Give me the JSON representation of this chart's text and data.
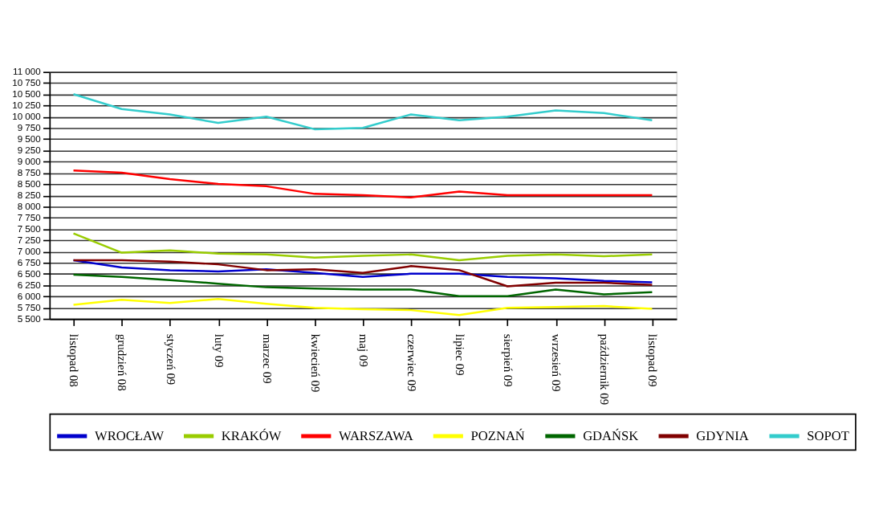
{
  "chart_data": {
    "type": "line",
    "categories": [
      "listopad 08",
      "grudzień 08",
      "styczeń 09",
      "luty 09",
      "marzec 09",
      "kwiecień 09",
      "maj 09",
      "czerwiec 09",
      "lipiec 09",
      "sierpień 09",
      "wrzesień 09",
      "październik 09",
      "listopad 09"
    ],
    "ylim": [
      5500,
      11000
    ],
    "yticks": [
      {
        "value": 5500,
        "label": "5 500"
      },
      {
        "value": 5750,
        "label": "5 750"
      },
      {
        "value": 6000,
        "label": "6 000"
      },
      {
        "value": 6250,
        "label": "6 250"
      },
      {
        "value": 6500,
        "label": "6 500"
      },
      {
        "value": 6750,
        "label": "6 750"
      },
      {
        "value": 7000,
        "label": "7 000"
      },
      {
        "value": 7250,
        "label": "7 250"
      },
      {
        "value": 7500,
        "label": "7 500"
      },
      {
        "value": 7750,
        "label": "7 750"
      },
      {
        "value": 8000,
        "label": "8 000"
      },
      {
        "value": 8250,
        "label": "8 250"
      },
      {
        "value": 8500,
        "label": "8 500"
      },
      {
        "value": 8750,
        "label": "8 750"
      },
      {
        "value": 9000,
        "label": "9 000"
      },
      {
        "value": 9250,
        "label": "9 250"
      },
      {
        "value": 9500,
        "label": "9 500"
      },
      {
        "value": 9750,
        "label": "9 750"
      },
      {
        "value": 10000,
        "label": "10 000"
      },
      {
        "value": 10250,
        "label": "10 250"
      },
      {
        "value": 10500,
        "label": "10 500"
      },
      {
        "value": 10750,
        "label": "10 750"
      },
      {
        "value": 11000,
        "label": "11 000"
      }
    ],
    "grid": "y",
    "legend": "bottom",
    "marker": "none",
    "line_style": "solid",
    "series": [
      {
        "name": "WROCŁAW",
        "color": "#0000cc",
        "values": [
          6800,
          6640,
          6580,
          6550,
          6600,
          6520,
          6430,
          6500,
          6500,
          6430,
          6400,
          6340,
          6310
        ]
      },
      {
        "name": "KRAKÓW",
        "color": "#99cc00",
        "values": [
          7400,
          6970,
          7020,
          6950,
          6930,
          6860,
          6900,
          6930,
          6800,
          6900,
          6930,
          6890,
          6930
        ]
      },
      {
        "name": "WARSZAWA",
        "color": "#ff0000",
        "values": [
          8800,
          8750,
          8610,
          8500,
          8450,
          8280,
          8250,
          8200,
          8330,
          8250,
          8250,
          8250,
          8250
        ]
      },
      {
        "name": "POZNAŃ",
        "color": "#ffff00",
        "values": [
          5810,
          5920,
          5850,
          5940,
          5830,
          5740,
          5710,
          5690,
          5580,
          5740,
          5760,
          5780,
          5720
        ]
      },
      {
        "name": "GDAŃSK",
        "color": "#006600",
        "values": [
          6480,
          6430,
          6360,
          6280,
          6200,
          6170,
          6150,
          6150,
          6000,
          6000,
          6150,
          6040,
          6090
        ]
      },
      {
        "name": "GDYNIA",
        "color": "#800000",
        "values": [
          6800,
          6800,
          6770,
          6710,
          6580,
          6600,
          6520,
          6670,
          6580,
          6220,
          6300,
          6300,
          6250
        ]
      },
      {
        "name": "SOPOT",
        "color": "#33cccc",
        "values": [
          10500,
          10170,
          10050,
          9860,
          10000,
          9720,
          9750,
          10050,
          9920,
          10000,
          10140,
          10080,
          9920
        ]
      }
    ]
  }
}
